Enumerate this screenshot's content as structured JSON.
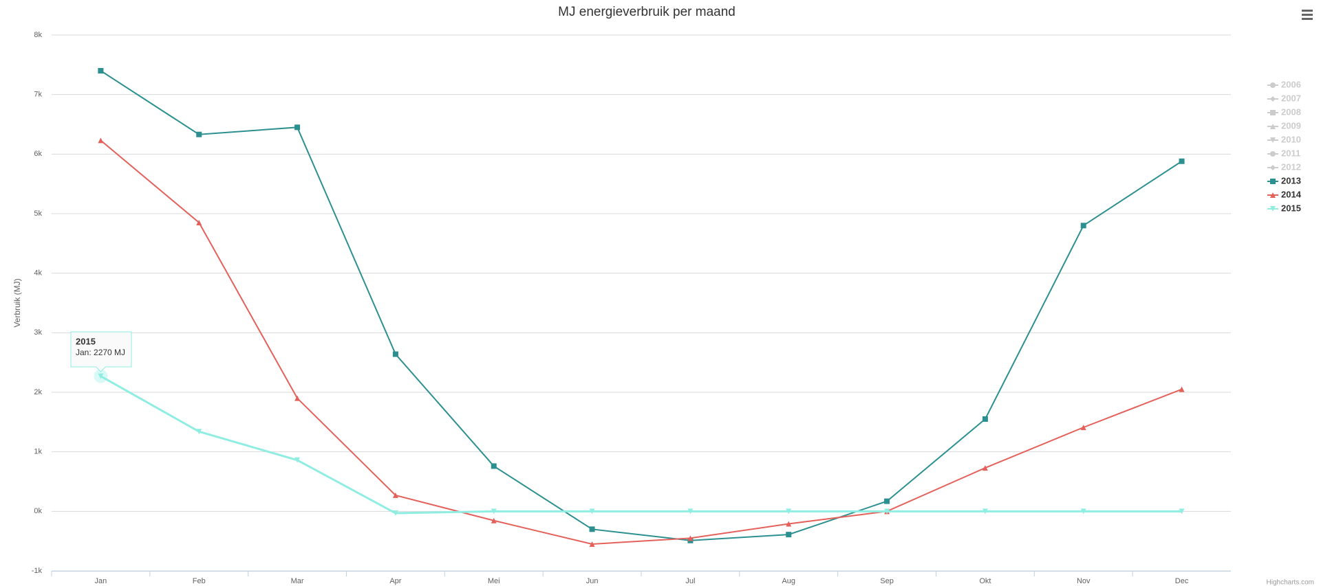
{
  "chart_data": {
    "type": "line",
    "title": "MJ energieverbruik per maand",
    "y_label": "Verbruik (MJ)",
    "categories": [
      "Jan",
      "Feb",
      "Mar",
      "Apr",
      "Mei",
      "Jun",
      "Jul",
      "Aug",
      "Sep",
      "Okt",
      "Nov",
      "Dec"
    ],
    "ylim": [
      -1000,
      8000
    ],
    "yticks": [
      {
        "value": -1000,
        "label": "-1k"
      },
      {
        "value": 0,
        "label": "0k"
      },
      {
        "value": 1000,
        "label": "1k"
      },
      {
        "value": 2000,
        "label": "2k"
      },
      {
        "value": 3000,
        "label": "3k"
      },
      {
        "value": 4000,
        "label": "4k"
      },
      {
        "value": 5000,
        "label": "5k"
      },
      {
        "value": 6000,
        "label": "6k"
      },
      {
        "value": 7000,
        "label": "7k"
      },
      {
        "value": 8000,
        "label": "8k"
      }
    ],
    "grid": true,
    "legend": "right",
    "hidden_series": [
      {
        "name": "2006",
        "marker": "circle"
      },
      {
        "name": "2007",
        "marker": "diamond"
      },
      {
        "name": "2008",
        "marker": "square"
      },
      {
        "name": "2009",
        "marker": "triangle"
      },
      {
        "name": "2010",
        "marker": "triangle-down"
      },
      {
        "name": "2011",
        "marker": "circle"
      },
      {
        "name": "2012",
        "marker": "diamond"
      }
    ],
    "series": [
      {
        "name": "2013",
        "color": "#2b908f",
        "marker": "square",
        "values": [
          7400,
          6330,
          6450,
          2640,
          760,
          -300,
          -490,
          -390,
          170,
          1550,
          4800,
          5880
        ]
      },
      {
        "name": "2014",
        "color": "#e4605a",
        "marker": "triangle",
        "values": [
          6230,
          4850,
          1900,
          270,
          -155,
          -550,
          -450,
          -210,
          0,
          730,
          1410,
          2050
        ]
      },
      {
        "name": "2015",
        "color": "#90ede2",
        "marker": "triangle-down",
        "values": [
          2270,
          1340,
          860,
          -30,
          0,
          0,
          0,
          0,
          0,
          0,
          0,
          0
        ]
      }
    ],
    "tooltip": {
      "series": 2,
      "index": 0,
      "text": "Jan: 2270 MJ"
    },
    "credits": "Highcharts.com"
  }
}
